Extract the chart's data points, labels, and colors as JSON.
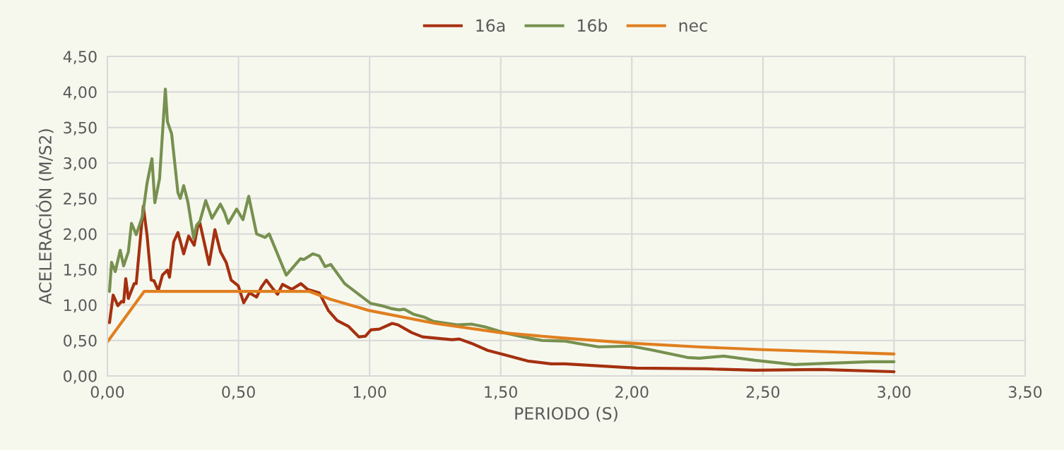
{
  "chart_data": {
    "type": "line",
    "xlabel": "PERIODO (S)",
    "ylabel": "ACELERACIÓN (M/S2)",
    "xlim": [
      0,
      3.5
    ],
    "ylim": [
      0,
      4.5
    ],
    "xticks": [
      {
        "value": 0,
        "label": "0,00"
      },
      {
        "value": 0.5,
        "label": "0,50"
      },
      {
        "value": 1,
        "label": "1,00"
      },
      {
        "value": 1.5,
        "label": "1,50"
      },
      {
        "value": 2,
        "label": "2,00"
      },
      {
        "value": 2.5,
        "label": "2,50"
      },
      {
        "value": 3,
        "label": "3,00"
      },
      {
        "value": 3.5,
        "label": "3,50"
      }
    ],
    "yticks": [
      {
        "value": 0,
        "label": "0,00"
      },
      {
        "value": 0.5,
        "label": "0,50"
      },
      {
        "value": 1,
        "label": "1,00"
      },
      {
        "value": 1.5,
        "label": "1,50"
      },
      {
        "value": 2,
        "label": "2,00"
      },
      {
        "value": 2.5,
        "label": "2,50"
      },
      {
        "value": 3,
        "label": "3,00"
      },
      {
        "value": 3.5,
        "label": "3,50"
      },
      {
        "value": 4,
        "label": "4,00"
      },
      {
        "value": 4.5,
        "label": "4,50"
      }
    ],
    "grid": true,
    "legend": "top",
    "marker": "none",
    "line_style": "solid",
    "series": [
      {
        "name": "16a",
        "color": "#a5300f",
        "x": [
          0.008,
          0.022,
          0.04,
          0.054,
          0.062,
          0.07,
          0.08,
          0.102,
          0.11,
          0.137,
          0.151,
          0.167,
          0.178,
          0.194,
          0.21,
          0.229,
          0.237,
          0.253,
          0.269,
          0.291,
          0.31,
          0.331,
          0.345,
          0.353,
          0.388,
          0.41,
          0.431,
          0.453,
          0.472,
          0.499,
          0.52,
          0.542,
          0.569,
          0.587,
          0.606,
          0.633,
          0.649,
          0.668,
          0.703,
          0.738,
          0.763,
          0.808,
          0.843,
          0.876,
          0.919,
          0.959,
          0.984,
          1.005,
          1.037,
          1.086,
          1.108,
          1.161,
          1.202,
          1.315,
          1.342,
          1.388,
          1.45,
          1.522,
          1.603,
          1.692,
          1.746,
          1.881,
          2.016,
          2.285,
          2.47,
          2.72,
          3.0
        ],
        "values": [
          0.75,
          1.14,
          0.99,
          1.05,
          1.04,
          1.37,
          1.09,
          1.3,
          1.3,
          2.39,
          1.99,
          1.35,
          1.34,
          1.2,
          1.42,
          1.49,
          1.39,
          1.89,
          2.02,
          1.72,
          1.97,
          1.84,
          2.12,
          2.15,
          1.57,
          2.06,
          1.75,
          1.6,
          1.35,
          1.27,
          1.03,
          1.17,
          1.11,
          1.25,
          1.35,
          1.22,
          1.15,
          1.29,
          1.22,
          1.3,
          1.22,
          1.17,
          0.92,
          0.78,
          0.7,
          0.55,
          0.56,
          0.65,
          0.66,
          0.74,
          0.72,
          0.61,
          0.55,
          0.51,
          0.52,
          0.46,
          0.36,
          0.29,
          0.21,
          0.17,
          0.17,
          0.14,
          0.11,
          0.1,
          0.08,
          0.09,
          0.06
        ]
      },
      {
        "name": "16b",
        "color": "#77904f",
        "x": [
          0.008,
          0.016,
          0.03,
          0.049,
          0.062,
          0.08,
          0.092,
          0.11,
          0.134,
          0.151,
          0.17,
          0.181,
          0.199,
          0.221,
          0.229,
          0.245,
          0.269,
          0.278,
          0.291,
          0.307,
          0.329,
          0.34,
          0.353,
          0.375,
          0.399,
          0.431,
          0.447,
          0.461,
          0.493,
          0.517,
          0.539,
          0.569,
          0.601,
          0.617,
          0.682,
          0.736,
          0.749,
          0.784,
          0.808,
          0.83,
          0.852,
          0.905,
          0.951,
          1.005,
          1.045,
          1.081,
          1.113,
          1.132,
          1.167,
          1.207,
          1.242,
          1.334,
          1.388,
          1.441,
          1.512,
          1.585,
          1.657,
          1.746,
          1.792,
          1.873,
          1.997,
          2.07,
          2.212,
          2.258,
          2.35,
          2.47,
          2.62,
          2.76,
          2.91,
          3.0
        ],
        "values": [
          1.19,
          1.6,
          1.47,
          1.77,
          1.55,
          1.75,
          2.15,
          1.99,
          2.25,
          2.71,
          3.06,
          2.44,
          2.78,
          4.04,
          3.58,
          3.41,
          2.58,
          2.5,
          2.68,
          2.45,
          1.94,
          2.12,
          2.18,
          2.47,
          2.22,
          2.42,
          2.3,
          2.15,
          2.35,
          2.2,
          2.53,
          2.0,
          1.95,
          2.0,
          1.42,
          1.65,
          1.64,
          1.72,
          1.69,
          1.54,
          1.57,
          1.3,
          1.17,
          1.02,
          0.99,
          0.95,
          0.93,
          0.94,
          0.87,
          0.83,
          0.77,
          0.72,
          0.73,
          0.69,
          0.61,
          0.55,
          0.5,
          0.49,
          0.46,
          0.41,
          0.42,
          0.37,
          0.26,
          0.25,
          0.28,
          0.22,
          0.16,
          0.18,
          0.2,
          0.2
        ]
      },
      {
        "name": "nec",
        "color": "#e07f1f",
        "x": [
          0,
          0.14,
          0.77,
          0.85,
          1.0,
          1.25,
          1.5,
          1.75,
          2.0,
          2.25,
          2.5,
          2.75,
          3.0
        ],
        "values": [
          0.48,
          1.19,
          1.19,
          1.08,
          0.92,
          0.74,
          0.61,
          0.53,
          0.46,
          0.41,
          0.37,
          0.34,
          0.31
        ]
      }
    ]
  }
}
